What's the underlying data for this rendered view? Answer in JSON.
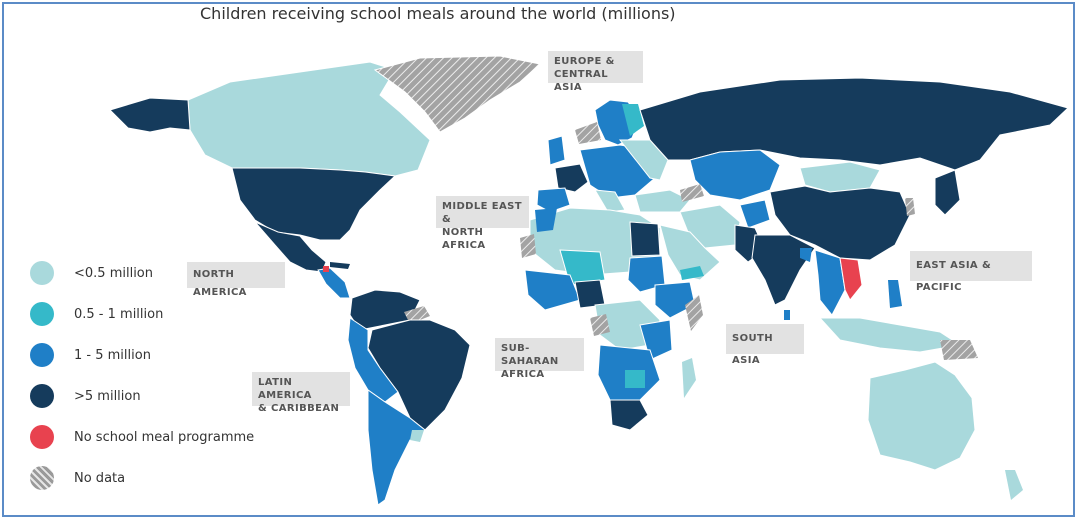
{
  "title": "Children receiving school meals around the world (millions)",
  "colors": {
    "lt05": "#a9d9dc",
    "r05_1": "#35b9c9",
    "r1_5": "#1f7fc7",
    "gt5": "#153b5c",
    "none": "#e8424f",
    "nodata": "#9a9a9a"
  },
  "regions": {
    "europe": [
      "EUROPE &",
      "CENTRAL ASIA"
    ],
    "mena": [
      "MIDDLE EAST &",
      "NORTH AFRICA"
    ],
    "north_america": "NORTH AMERICA",
    "east_asia": "EAST ASIA & PACIFIC",
    "ssa": [
      "SUB-SAHARAN",
      "AFRICA"
    ],
    "south_asia": "SOUTH ASIA",
    "latam": [
      "LATIN AMERICA",
      "& CARIBBEAN"
    ]
  },
  "legend": [
    {
      "label": "<0.5 million",
      "color": "#a9d9dc"
    },
    {
      "label": "0.5 - 1 million",
      "color": "#35b9c9"
    },
    {
      "label": "1 - 5 million",
      "color": "#1f7fc7"
    },
    {
      "label": ">5 million",
      "color": "#153b5c"
    },
    {
      "label": "No school meal programme",
      "color": "#e8424f"
    },
    {
      "label": "No data",
      "color": "hatch"
    }
  ]
}
